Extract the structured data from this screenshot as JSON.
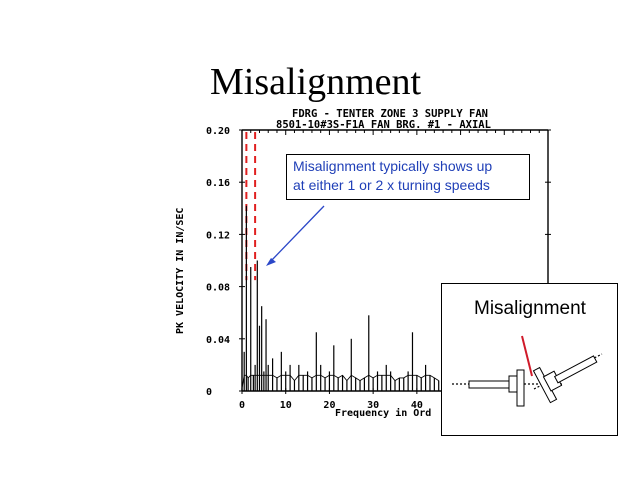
{
  "slide": {
    "title": "Misalignment"
  },
  "chart": {
    "title_line1": "FDRG - TENTER ZONE 3 SUPPLY FAN",
    "title_line2": "8501-10#3S-F1A    FAN BRG. #1 - AXIAL"
  },
  "chart_data": {
    "type": "line",
    "title": "FDRG - TENTER ZONE 3 SUPPLY FAN / 8501-10#3S-F1A FAN BRG. #1 - AXIAL",
    "xlabel": "Frequency in Ord",
    "ylabel": "PK VELOCITY IN IN/SEC",
    "xlim": [
      0,
      70
    ],
    "ylim": [
      0,
      0.2
    ],
    "x_ticks": [
      "0",
      "10",
      "20",
      "30",
      "40"
    ],
    "y_ticks": [
      "0",
      "0.04",
      "0.08",
      "0.12",
      "0.16",
      "0.20"
    ],
    "grid": false,
    "marker_lines": [
      1,
      3
    ],
    "x": [
      0,
      0.5,
      1,
      1.4,
      2,
      2.6,
      3,
      3.5,
      4,
      4.5,
      5,
      5.5,
      6,
      7,
      8,
      9,
      10,
      11,
      12,
      13,
      14,
      15,
      16,
      17,
      18,
      19,
      20,
      21,
      22,
      23,
      24,
      25,
      26,
      27,
      28,
      29,
      30,
      31,
      32,
      33,
      34,
      35,
      36,
      37,
      38,
      39,
      40,
      41,
      42,
      43,
      44,
      45
    ],
    "y": [
      0.002,
      0.03,
      0.142,
      0.01,
      0.095,
      0.012,
      0.02,
      0.1,
      0.05,
      0.065,
      0.015,
      0.055,
      0.02,
      0.025,
      0.01,
      0.03,
      0.015,
      0.02,
      0.008,
      0.02,
      0.012,
      0.015,
      0.01,
      0.045,
      0.02,
      0.01,
      0.015,
      0.035,
      0.01,
      0.012,
      0.008,
      0.04,
      0.01,
      0.008,
      0.01,
      0.058,
      0.01,
      0.015,
      0.012,
      0.02,
      0.015,
      0.008,
      0.01,
      0.01,
      0.015,
      0.045,
      0.012,
      0.01,
      0.02,
      0.012,
      0.01,
      0.008
    ]
  },
  "callout": {
    "line1": "Misalignment typically shows up",
    "line2": " at either 1 or 2 x turning speeds"
  },
  "inset": {
    "title": "Misalignment"
  },
  "colors": {
    "callout_text": "#1f3fb7",
    "arrow": "#2b47c8",
    "dashed_marker": "#e02020",
    "inset_pointer": "#d01a2a"
  }
}
